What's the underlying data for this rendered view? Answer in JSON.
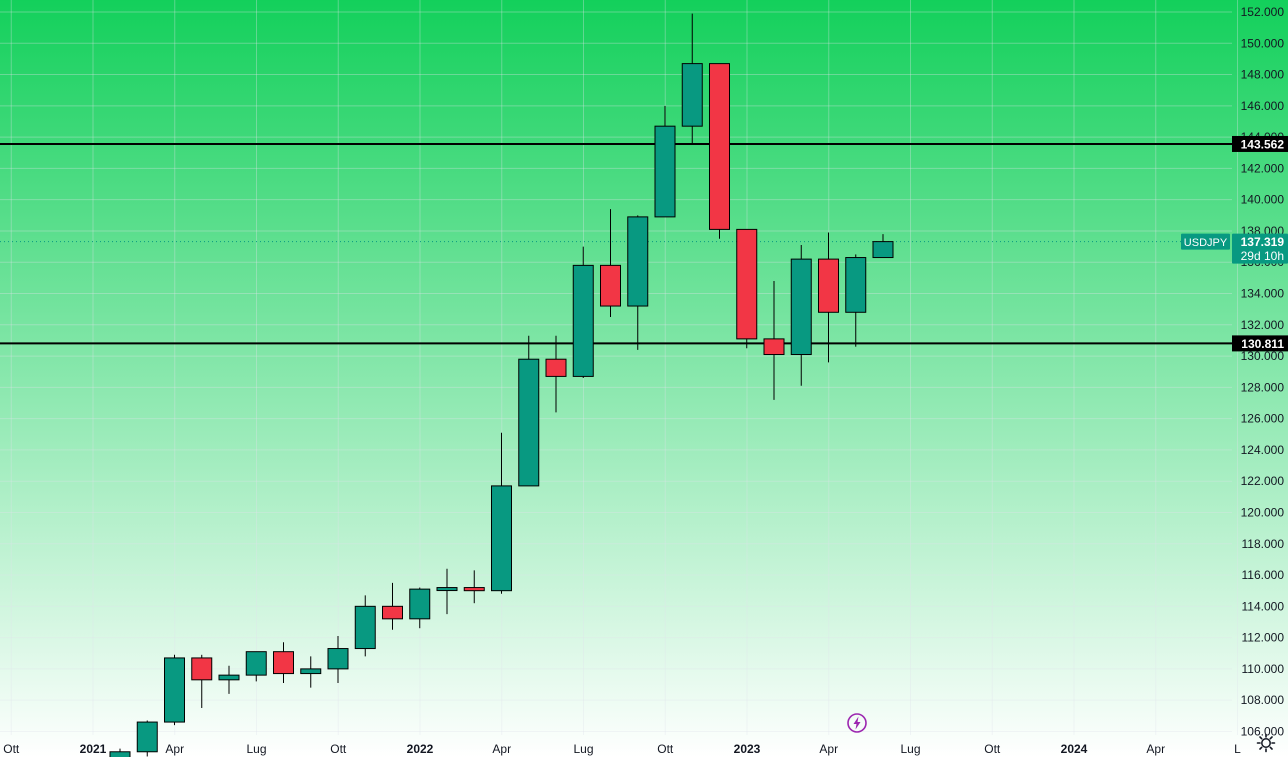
{
  "chart_data": {
    "type": "candlestick",
    "symbol": "USDJPY",
    "interval": "monthly",
    "y_axis": {
      "min": 106,
      "max": 153,
      "tick_labels": [
        "106.000",
        "108.000",
        "110.000",
        "112.000",
        "114.000",
        "116.000",
        "118.000",
        "120.000",
        "122.000",
        "124.000",
        "126.000",
        "128.000",
        "130.000",
        "132.000",
        "134.000",
        "136.000",
        "138.000",
        "140.000",
        "142.000",
        "144.000",
        "146.000",
        "148.000",
        "150.000",
        "152.000"
      ]
    },
    "x_axis": {
      "tick_labels": [
        {
          "label": "Ott",
          "index": -3,
          "bold": false
        },
        {
          "label": "2021",
          "index": 0,
          "bold": true
        },
        {
          "label": "Apr",
          "index": 3,
          "bold": false
        },
        {
          "label": "Lug",
          "index": 6,
          "bold": false
        },
        {
          "label": "Ott",
          "index": 9,
          "bold": false
        },
        {
          "label": "2022",
          "index": 12,
          "bold": true
        },
        {
          "label": "Apr",
          "index": 15,
          "bold": false
        },
        {
          "label": "Lug",
          "index": 18,
          "bold": false
        },
        {
          "label": "Ott",
          "index": 21,
          "bold": false
        },
        {
          "label": "2023",
          "index": 24,
          "bold": true
        },
        {
          "label": "Apr",
          "index": 27,
          "bold": false
        },
        {
          "label": "Lug",
          "index": 30,
          "bold": false
        },
        {
          "label": "Ott",
          "index": 33,
          "bold": false
        },
        {
          "label": "2024",
          "index": 36,
          "bold": true
        },
        {
          "label": "Apr",
          "index": 39,
          "bold": false
        },
        {
          "label": "L",
          "index": 42,
          "bold": false
        }
      ]
    },
    "candles": [
      {
        "month": "2021-01",
        "open": 103.2,
        "high": 104.9,
        "low": 102.6,
        "close": 104.7
      },
      {
        "month": "2021-02",
        "open": 104.7,
        "high": 106.7,
        "low": 104.4,
        "close": 106.6
      },
      {
        "month": "2021-03",
        "open": 106.6,
        "high": 110.9,
        "low": 106.4,
        "close": 110.7
      },
      {
        "month": "2021-04",
        "open": 110.7,
        "high": 110.9,
        "low": 107.5,
        "close": 109.3
      },
      {
        "month": "2021-05",
        "open": 109.3,
        "high": 110.2,
        "low": 108.4,
        "close": 109.6
      },
      {
        "month": "2021-06",
        "open": 109.6,
        "high": 111.1,
        "low": 109.2,
        "close": 111.1
      },
      {
        "month": "2021-07",
        "open": 111.1,
        "high": 111.7,
        "low": 109.1,
        "close": 109.7
      },
      {
        "month": "2021-08",
        "open": 109.7,
        "high": 110.8,
        "low": 108.8,
        "close": 110.0
      },
      {
        "month": "2021-09",
        "open": 110.0,
        "high": 112.1,
        "low": 109.1,
        "close": 111.3
      },
      {
        "month": "2021-10",
        "open": 111.3,
        "high": 114.7,
        "low": 110.8,
        "close": 114.0
      },
      {
        "month": "2021-11",
        "open": 114.0,
        "high": 115.5,
        "low": 112.5,
        "close": 113.2
      },
      {
        "month": "2021-12",
        "open": 113.2,
        "high": 115.2,
        "low": 112.6,
        "close": 115.1
      },
      {
        "month": "2022-01",
        "open": 115.1,
        "high": 116.4,
        "low": 113.5,
        "close": 115.2
      },
      {
        "month": "2022-02",
        "open": 115.2,
        "high": 116.3,
        "low": 114.2,
        "close": 115.0
      },
      {
        "month": "2022-03",
        "open": 115.0,
        "high": 125.1,
        "low": 114.8,
        "close": 121.7
      },
      {
        "month": "2022-04",
        "open": 121.7,
        "high": 131.3,
        "low": 121.7,
        "close": 129.8
      },
      {
        "month": "2022-05",
        "open": 129.8,
        "high": 131.3,
        "low": 126.4,
        "close": 128.7
      },
      {
        "month": "2022-06",
        "open": 128.7,
        "high": 137.0,
        "low": 128.6,
        "close": 135.8
      },
      {
        "month": "2022-07",
        "open": 135.8,
        "high": 139.4,
        "low": 132.5,
        "close": 133.2
      },
      {
        "month": "2022-08",
        "open": 133.2,
        "high": 139.0,
        "low": 130.4,
        "close": 138.9
      },
      {
        "month": "2022-09",
        "open": 138.9,
        "high": 146.0,
        "low": 138.9,
        "close": 144.7
      },
      {
        "month": "2022-10",
        "open": 144.7,
        "high": 151.9,
        "low": 143.6,
        "close": 148.7
      },
      {
        "month": "2022-11",
        "open": 148.7,
        "high": 148.7,
        "low": 137.5,
        "close": 138.1
      },
      {
        "month": "2022-12",
        "open": 138.1,
        "high": 138.1,
        "low": 130.5,
        "close": 131.1
      },
      {
        "month": "2023-01",
        "open": 131.1,
        "high": 134.8,
        "low": 127.2,
        "close": 130.1
      },
      {
        "month": "2023-02",
        "open": 130.1,
        "high": 137.1,
        "low": 128.1,
        "close": 136.2
      },
      {
        "month": "2023-03",
        "open": 136.2,
        "high": 137.9,
        "low": 129.6,
        "close": 132.8
      },
      {
        "month": "2023-04",
        "open": 132.8,
        "high": 136.5,
        "low": 130.6,
        "close": 136.3
      },
      {
        "month": "2023-05",
        "open": 136.3,
        "high": 137.8,
        "low": 136.3,
        "close": 137.319
      }
    ],
    "horizontal_lines": [
      {
        "value": 143.562,
        "label": "143.562"
      },
      {
        "value": 130.811,
        "label": "130.811"
      }
    ],
    "last_price": {
      "value": 137.319,
      "label": "137.319",
      "symbol_label": "USDJPY",
      "countdown": "29d 10h"
    },
    "grid": true,
    "background_gradient": [
      "#13d05b",
      "#ffffff"
    ],
    "colors": {
      "up": "#089981",
      "down": "#f23645",
      "line": "#000000",
      "grid": "#e0e3eb",
      "text": "#131722",
      "badge_text": "#ffffff",
      "accent": "#9c27b0"
    }
  },
  "icons": {
    "settings": "gear-icon",
    "flash": "lightning-icon"
  }
}
